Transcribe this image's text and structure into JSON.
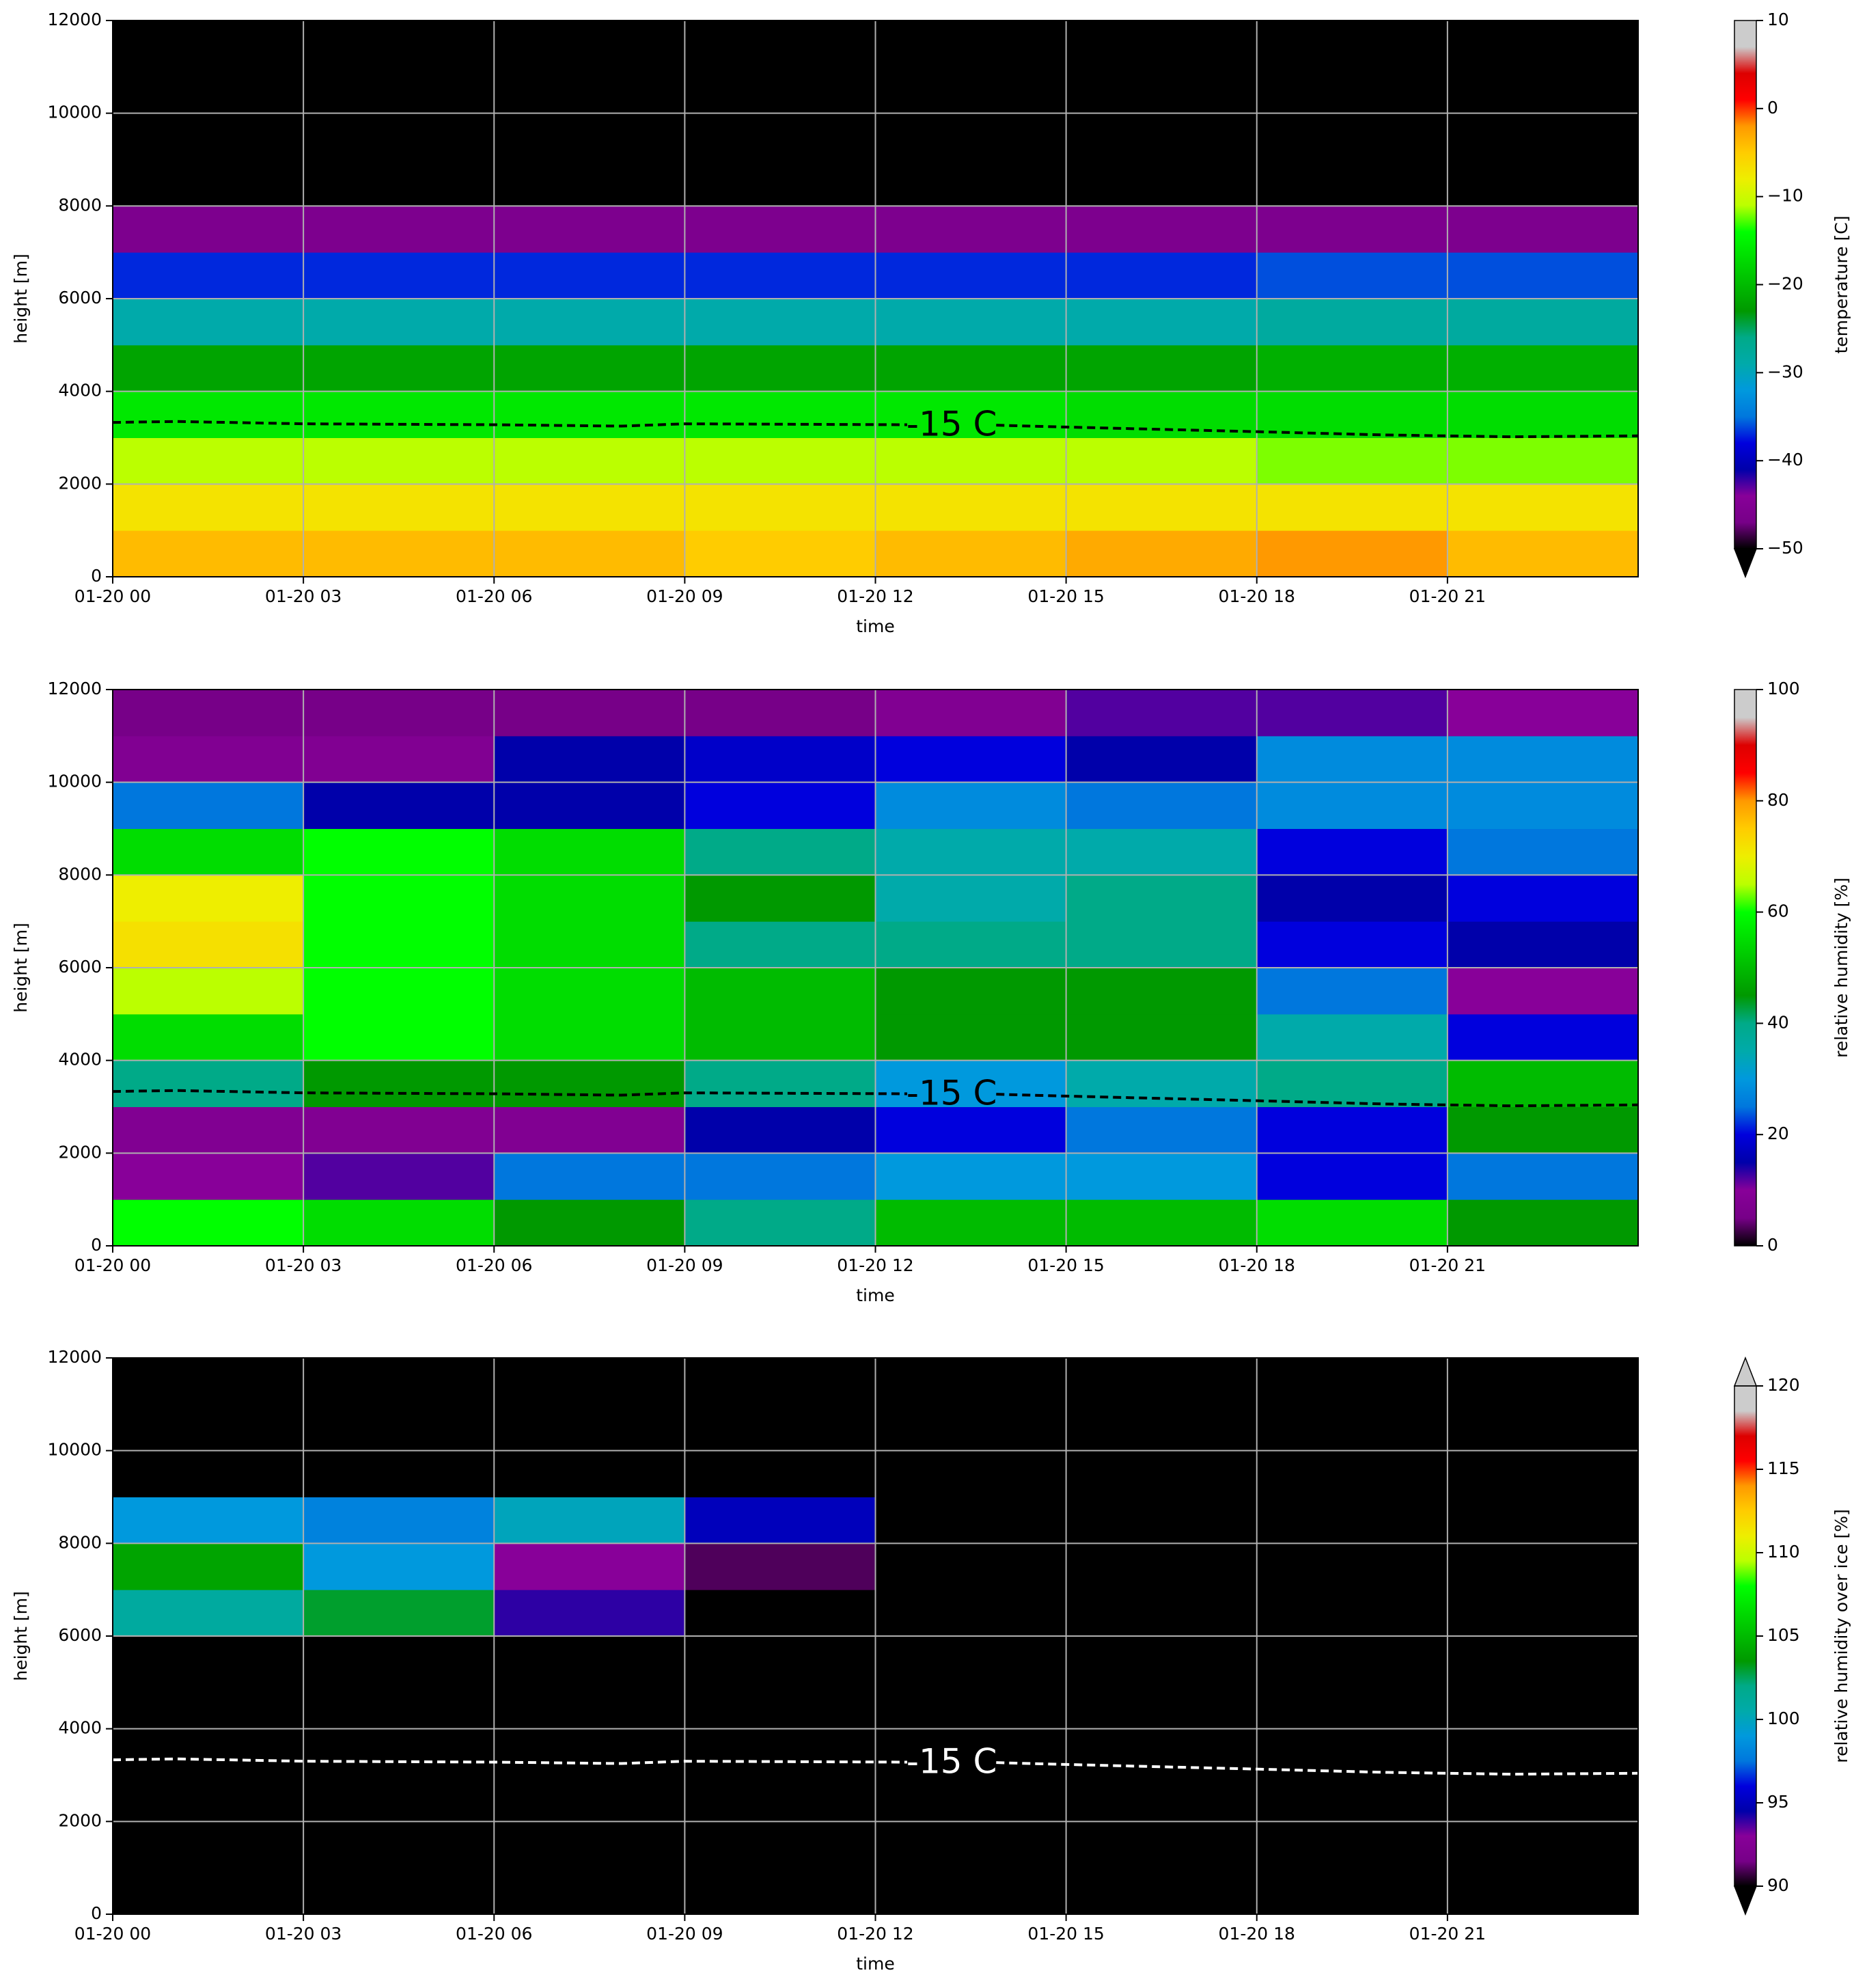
{
  "chart_data": [
    {
      "type": "heatmap",
      "x_label": "time",
      "y_label": "height [m]",
      "cmap": "nipy_spectral",
      "grid": true,
      "xlim": [
        0,
        24
      ],
      "ylim": [
        0,
        12000
      ],
      "xticks": [
        {
          "value": 0,
          "label": "01-20 00"
        },
        {
          "value": 3,
          "label": "01-20 03"
        },
        {
          "value": 6,
          "label": "01-20 06"
        },
        {
          "value": 9,
          "label": "01-20 09"
        },
        {
          "value": 12,
          "label": "01-20 12"
        },
        {
          "value": 15,
          "label": "01-20 15"
        },
        {
          "value": 18,
          "label": "01-20 18"
        },
        {
          "value": 21,
          "label": "01-20 21"
        }
      ],
      "yticks": [
        0,
        2000,
        4000,
        6000,
        8000,
        10000,
        12000
      ],
      "x": [
        1.5,
        4.5,
        7.5,
        10.5,
        13.5,
        16.5,
        19.5,
        22.5
      ],
      "y": [
        500,
        1500,
        2500,
        3500,
        4500,
        5500,
        6500,
        7500,
        8500,
        9500,
        10500,
        11500
      ],
      "z": [
        [
          -4,
          -4,
          -4,
          -5,
          -4,
          -3,
          -2,
          -4
        ],
        [
          -7,
          -7,
          -7,
          -7,
          -7,
          -7,
          -7,
          -7
        ],
        [
          -11,
          -11,
          -11,
          -11,
          -11,
          -11,
          -12,
          -12
        ],
        [
          -16,
          -16,
          -16,
          -16,
          -16,
          -17,
          -17,
          -17
        ],
        [
          -22,
          -22,
          -22,
          -22,
          -22,
          -22,
          -21,
          -21
        ],
        [
          -29,
          -29,
          -29,
          -29,
          -29,
          -29,
          -28,
          -28
        ],
        [
          -37,
          -37,
          -37,
          -37,
          -37,
          -37,
          -36,
          -36
        ],
        [
          -46,
          -46,
          -46,
          -46,
          -46,
          -46,
          -46,
          -46
        ],
        [
          -55,
          -55,
          -55,
          -55,
          -55,
          -55,
          -55,
          -55
        ],
        [
          -55,
          -55,
          -55,
          -55,
          -55,
          -55,
          -55,
          -55
        ],
        [
          -55,
          -55,
          -55,
          -55,
          -55,
          -55,
          -55,
          -55
        ],
        [
          -55,
          -55,
          -55,
          -55,
          -55,
          -55,
          -55,
          -55
        ]
      ],
      "colorbar": {
        "label": "temperature [C]",
        "lim": [
          -50,
          10
        ],
        "extend": "min",
        "ticks": [
          {
            "value": -50,
            "label": "−50"
          },
          {
            "value": -40,
            "label": "−40"
          },
          {
            "value": -30,
            "label": "−30"
          },
          {
            "value": -20,
            "label": "−20"
          },
          {
            "value": -10,
            "label": "−10"
          },
          0,
          10
        ]
      },
      "contour": {
        "label": "-15 C",
        "color": "#000000",
        "x": [
          0,
          1,
          3,
          6,
          8,
          9,
          12.5,
          13,
          13.9,
          15,
          18,
          20,
          22,
          24
        ],
        "values": [
          3330,
          3350,
          3300,
          3280,
          3250,
          3300,
          3280,
          null,
          3270,
          3230,
          3130,
          3060,
          3020,
          3040
        ]
      }
    },
    {
      "type": "heatmap",
      "x_label": "time",
      "y_label": "height [m]",
      "cmap": "nipy_spectral",
      "grid": true,
      "xlim": [
        0,
        24
      ],
      "ylim": [
        0,
        12000
      ],
      "xticks": [
        {
          "value": 0,
          "label": "01-20 00"
        },
        {
          "value": 3,
          "label": "01-20 03"
        },
        {
          "value": 6,
          "label": "01-20 06"
        },
        {
          "value": 9,
          "label": "01-20 09"
        },
        {
          "value": 12,
          "label": "01-20 12"
        },
        {
          "value": 15,
          "label": "01-20 15"
        },
        {
          "value": 18,
          "label": "01-20 18"
        },
        {
          "value": 21,
          "label": "01-20 21"
        }
      ],
      "yticks": [
        0,
        2000,
        4000,
        6000,
        8000,
        10000,
        12000
      ],
      "x": [
        1.5,
        4.5,
        7.5,
        10.5,
        13.5,
        16.5,
        19.5,
        22.5
      ],
      "y": [
        500,
        1500,
        2500,
        3500,
        4500,
        5500,
        6500,
        7500,
        8500,
        9500,
        10500,
        11500
      ],
      "z": [
        [
          60,
          55,
          45,
          40,
          50,
          50,
          55,
          45
        ],
        [
          10,
          12,
          25,
          25,
          30,
          30,
          20,
          25
        ],
        [
          8,
          8,
          8,
          15,
          20,
          25,
          20,
          45
        ],
        [
          40,
          45,
          45,
          40,
          30,
          35,
          40,
          50
        ],
        [
          55,
          60,
          55,
          50,
          45,
          45,
          35,
          20
        ],
        [
          65,
          60,
          55,
          50,
          45,
          45,
          25,
          10
        ],
        [
          72,
          60,
          55,
          40,
          40,
          40,
          20,
          15
        ],
        [
          70,
          60,
          55,
          45,
          35,
          40,
          15,
          20
        ],
        [
          55,
          60,
          55,
          40,
          35,
          35,
          20,
          25
        ],
        [
          25,
          15,
          15,
          20,
          28,
          25,
          28,
          28
        ],
        [
          8,
          8,
          15,
          18,
          20,
          15,
          28,
          28
        ],
        [
          5,
          5,
          5,
          5,
          8,
          12,
          12,
          10
        ]
      ],
      "colorbar": {
        "label": "relative humidity [%]",
        "lim": [
          0,
          100
        ],
        "extend": "neither",
        "ticks": [
          0,
          20,
          40,
          60,
          80,
          100
        ]
      },
      "contour": {
        "label": "-15 C",
        "color": "#000000",
        "x": [
          0,
          1,
          3,
          6,
          8,
          9,
          12.5,
          13,
          13.9,
          15,
          18,
          20,
          22,
          24
        ],
        "values": [
          3330,
          3350,
          3300,
          3280,
          3250,
          3300,
          3280,
          null,
          3270,
          3230,
          3130,
          3060,
          3020,
          3040
        ]
      }
    },
    {
      "type": "heatmap",
      "x_label": "time",
      "y_label": "height [m]",
      "cmap": "nipy_spectral",
      "grid": true,
      "xlim": [
        0,
        24
      ],
      "ylim": [
        0,
        12000
      ],
      "xticks": [
        {
          "value": 0,
          "label": "01-20 00"
        },
        {
          "value": 3,
          "label": "01-20 03"
        },
        {
          "value": 6,
          "label": "01-20 06"
        },
        {
          "value": 9,
          "label": "01-20 09"
        },
        {
          "value": 12,
          "label": "01-20 12"
        },
        {
          "value": 15,
          "label": "01-20 15"
        },
        {
          "value": 18,
          "label": "01-20 18"
        },
        {
          "value": 21,
          "label": "01-20 21"
        }
      ],
      "yticks": [
        0,
        2000,
        4000,
        6000,
        8000,
        10000,
        12000
      ],
      "x": [
        1.5,
        4.5,
        7.5,
        10.5,
        13.5,
        16.5,
        19.5,
        22.5
      ],
      "y": [
        500,
        1500,
        2500,
        3500,
        4500,
        5500,
        6500,
        7500,
        8500,
        9500,
        10500,
        11500
      ],
      "z": [
        [
          85,
          85,
          85,
          85,
          85,
          85,
          85,
          85
        ],
        [
          85,
          85,
          85,
          85,
          85,
          85,
          85,
          85
        ],
        [
          85,
          85,
          85,
          85,
          85,
          85,
          85,
          85
        ],
        [
          85,
          85,
          85,
          85,
          85,
          85,
          85,
          85
        ],
        [
          85,
          85,
          85,
          85,
          85,
          85,
          85,
          85
        ],
        [
          85,
          85,
          85,
          85,
          85,
          85,
          85,
          85
        ],
        [
          101,
          103,
          94,
          85,
          85,
          85,
          85,
          85
        ],
        [
          104,
          99,
          93,
          91,
          85,
          85,
          85,
          85
        ],
        [
          99,
          98,
          100,
          95,
          85,
          85,
          85,
          85
        ],
        [
          85,
          85,
          85,
          85,
          85,
          85,
          85,
          85
        ],
        [
          85,
          85,
          85,
          85,
          85,
          85,
          85,
          85
        ],
        [
          85,
          85,
          85,
          85,
          85,
          85,
          85,
          85
        ]
      ],
      "colorbar": {
        "label": "relative humidity over ice [%]",
        "lim": [
          90,
          120
        ],
        "extend": "both",
        "ticks": [
          90,
          95,
          100,
          105,
          110,
          115,
          120
        ]
      },
      "contour": {
        "label": "-15 C",
        "color": "#ffffff",
        "x": [
          0,
          1,
          3,
          6,
          8,
          9,
          12.5,
          13,
          13.9,
          15,
          18,
          20,
          22,
          24
        ],
        "values": [
          3330,
          3350,
          3300,
          3280,
          3250,
          3300,
          3280,
          null,
          3270,
          3230,
          3130,
          3060,
          3020,
          3040
        ]
      }
    }
  ]
}
